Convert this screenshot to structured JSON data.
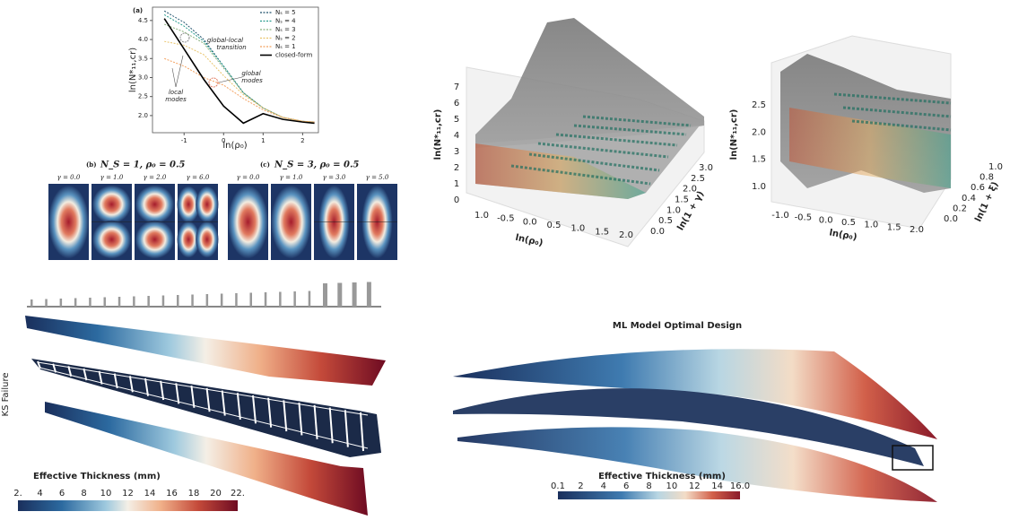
{
  "panel_a": {
    "label": "(a)",
    "xlabel": "ln(ρ₀)",
    "ylabel": "ln(N*₁₁,cr)",
    "xlim": [
      -1.8,
      2.4
    ],
    "ylim": [
      1.55,
      4.85
    ],
    "xticks": [
      -1,
      0,
      1,
      2
    ],
    "yticks": [
      {
        "value": 2,
        "label": "2.0"
      },
      2.5,
      {
        "value": 3,
        "label": "3.0"
      },
      3.5,
      {
        "value": 4,
        "label": "4.0"
      },
      4.5
    ],
    "x": [
      -1.5,
      -1,
      -0.5,
      0,
      0.5,
      1,
      1.5,
      2,
      2.3
    ],
    "series": [
      {
        "name": "Nₛ = 5",
        "color": "#1d4f6a",
        "values": [
          4.75,
          4.45,
          4.0,
          3.3,
          2.6,
          2.2,
          1.95,
          1.85,
          1.83
        ]
      },
      {
        "name": "Nₛ = 4",
        "color": "#2a9d8f",
        "values": [
          4.65,
          4.35,
          3.95,
          3.3,
          2.6,
          2.2,
          1.95,
          1.85,
          1.83
        ]
      },
      {
        "name": "Nₛ = 3",
        "color": "#8ab17d",
        "values": [
          4.4,
          4.2,
          3.9,
          3.25,
          2.6,
          2.2,
          1.95,
          1.85,
          1.83
        ]
      },
      {
        "name": "Nₛ = 2",
        "color": "#e9c46a",
        "values": [
          3.95,
          3.85,
          3.6,
          3.05,
          2.55,
          2.2,
          1.95,
          1.85,
          1.83
        ]
      },
      {
        "name": "Nₛ = 1",
        "color": "#f4a261",
        "values": [
          3.5,
          3.3,
          3.0,
          2.8,
          2.45,
          2.15,
          1.95,
          1.85,
          1.83
        ]
      },
      {
        "name": "closed-form",
        "color": "#000000",
        "values": [
          4.55,
          3.75,
          2.95,
          2.25,
          1.8,
          2.05,
          1.9,
          1.83,
          1.8
        ]
      }
    ],
    "annotations": [
      "global-local",
      "transition",
      "global",
      "modes",
      "local",
      "modes"
    ]
  },
  "panel_b": {
    "label": "(b)",
    "title": "N_S = 1,   ρ₀ = 0.5",
    "gammas": [
      "γ = 0.0",
      "γ = 1.0",
      "γ = 2.0",
      "γ = 6.0"
    ]
  },
  "panel_c": {
    "label": "(c)",
    "title": "N_S = 3,   ρ₀ = 0.5",
    "gammas": [
      "γ = 0.0",
      "γ = 1.0",
      "γ = 3.0",
      "γ = 5.0"
    ]
  },
  "surface_1": {
    "zlabel": "ln(N*₁₁,cr)",
    "xlabel": "ln(ρ₀)",
    "ylabel": "ln(1 + γ)",
    "zticks": [
      "0",
      "1",
      "2",
      "3",
      "4",
      "5",
      "6",
      "7"
    ],
    "xticks": [
      "1.0",
      "-0.5",
      "0.0",
      "0.5",
      "1.0",
      "1.5",
      "2.0"
    ],
    "yticks": [
      "0.0",
      "0.5",
      "1.0",
      "1.5",
      "2.0",
      "2.5",
      "3.0"
    ]
  },
  "surface_2": {
    "zlabel": "ln(N*₁₁,cr)",
    "xlabel": "ln(ρ₀)",
    "ylabel": "ln(1 + ξ)",
    "zticks": [
      "1.0",
      "1.5",
      "2.0",
      "2.5"
    ],
    "xticks": [
      "-1.0",
      "-0.5",
      "0.0",
      "0.5",
      "1.0",
      "1.5",
      "2.0"
    ],
    "yticks": [
      "0.0",
      "0.2",
      "0.4",
      "0.6",
      "0.8",
      "1.0"
    ]
  },
  "wing_left": {
    "side_label": "KS Failure",
    "colorbar_title": "Effective Thickness (mm)",
    "colorbar_ticks": [
      "2.",
      "4",
      "6",
      "8",
      "10",
      "12",
      "14",
      "16",
      "18",
      "20",
      "22."
    ]
  },
  "wing_right": {
    "title": "ML Model Optimal Design",
    "colorbar_title": "Effective Thickness (mm)",
    "colorbar_ticks": [
      "0.1",
      "2",
      "4",
      "6",
      "8",
      "10",
      "12",
      "14",
      "16.0"
    ]
  }
}
